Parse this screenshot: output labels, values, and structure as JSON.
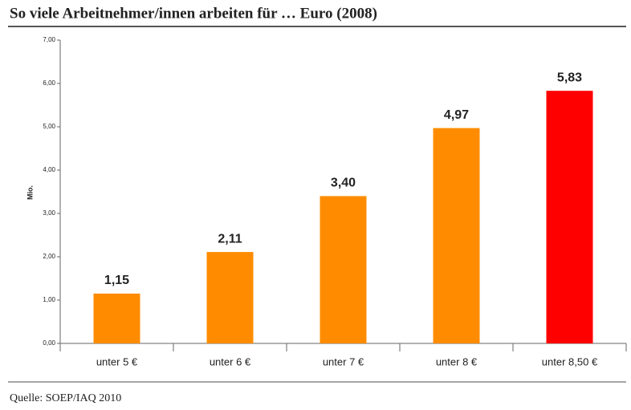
{
  "chart_data": {
    "type": "bar",
    "title": "So viele Arbeitnehmer/innen arbeiten für … Euro (2008)",
    "ylabel": "Mio.",
    "source": "Quelle: SOEP/IAQ 2010",
    "categories": [
      "unter 5 €",
      "unter 6 €",
      "unter 7 €",
      "unter 8 €",
      "unter 8,50 €"
    ],
    "values": [
      1.15,
      2.11,
      3.4,
      4.97,
      5.83
    ],
    "value_labels": [
      "1,15",
      "2,11",
      "3,40",
      "4,97",
      "5,83"
    ],
    "colors": [
      "#ff8c00",
      "#ff8c00",
      "#ff8c00",
      "#ff8c00",
      "#ff0000"
    ],
    "ylim": [
      0,
      7
    ],
    "yticks": [
      {
        "value": 0,
        "label": "0,00"
      },
      {
        "value": 1,
        "label": "1,00"
      },
      {
        "value": 2,
        "label": "2,00"
      },
      {
        "value": 3,
        "label": "3,00"
      },
      {
        "value": 4,
        "label": "4,00"
      },
      {
        "value": 5,
        "label": "5,00"
      },
      {
        "value": 6,
        "label": "6,00"
      },
      {
        "value": 7,
        "label": "7,00"
      }
    ],
    "grid": false
  }
}
